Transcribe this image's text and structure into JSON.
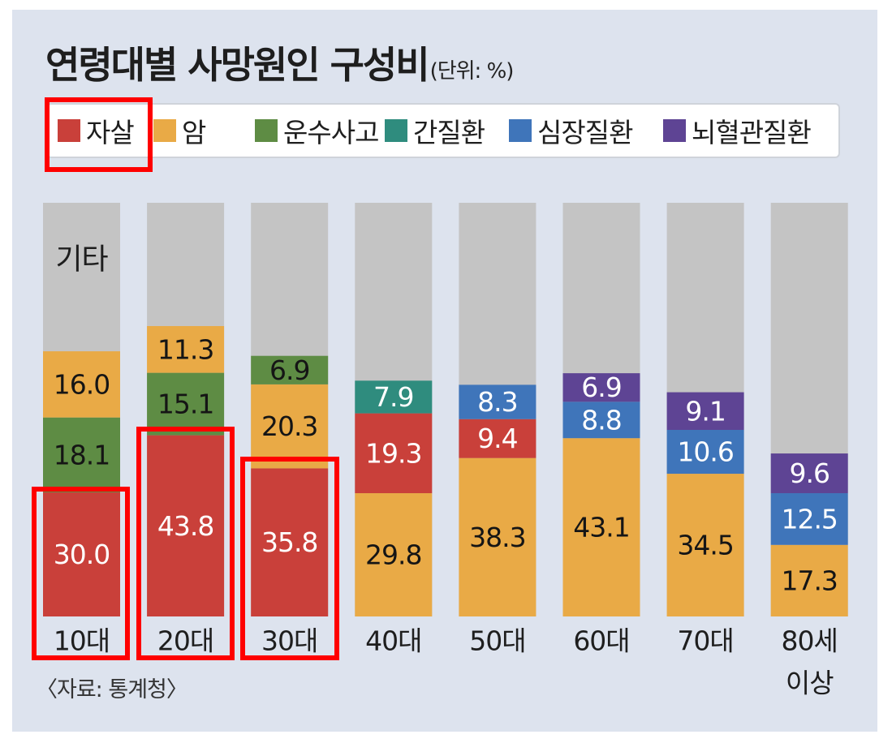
{
  "chart_data": {
    "type": "bar",
    "stacked": true,
    "title": "연령대별 사망원인 구성비",
    "unit_label": "(단위: %)",
    "source": "〈자료: 통계청〉",
    "categories": [
      "10대",
      "20대",
      "30대",
      "40대",
      "50대",
      "60대",
      "70대",
      "80세\n이상"
    ],
    "series": [
      {
        "name": "자살",
        "color": "#c9403a",
        "values": [
          30.0,
          43.8,
          35.8,
          19.3,
          9.4,
          null,
          null,
          null
        ]
      },
      {
        "name": "암",
        "color": "#e9aa46",
        "values": [
          16.0,
          11.3,
          20.3,
          29.8,
          38.3,
          43.1,
          34.5,
          17.3
        ]
      },
      {
        "name": "운수사고",
        "color": "#5e8c44",
        "values": [
          18.1,
          15.1,
          6.9,
          null,
          null,
          null,
          null,
          null
        ]
      },
      {
        "name": "간질환",
        "color": "#2f8c7e",
        "values": [
          null,
          null,
          null,
          7.9,
          null,
          null,
          null,
          null
        ]
      },
      {
        "name": "심장질환",
        "color": "#3f75ba",
        "values": [
          null,
          null,
          null,
          null,
          8.3,
          8.8,
          10.6,
          12.5
        ]
      },
      {
        "name": "뇌혈관질환",
        "color": "#5e4494",
        "values": [
          null,
          null,
          null,
          null,
          null,
          6.9,
          9.1,
          9.6
        ]
      }
    ],
    "stack_order": [
      [
        "자살",
        "운수사고",
        "암"
      ],
      [
        "자살",
        "운수사고",
        "암"
      ],
      [
        "자살",
        "암",
        "운수사고"
      ],
      [
        "암",
        "자살",
        "간질환"
      ],
      [
        "암",
        "자살",
        "심장질환"
      ],
      [
        "암",
        "심장질환",
        "뇌혈관질환"
      ],
      [
        "암",
        "심장질환",
        "뇌혈관질환"
      ],
      [
        "암",
        "심장질환",
        "뇌혈관질환"
      ]
    ],
    "other_label": "기타",
    "other_color": "#c4c4c4",
    "ylim": [
      0,
      100
    ],
    "highlight": {
      "legend_item": "자살",
      "categories": [
        "10대",
        "20대",
        "30대"
      ],
      "color": "#ff0000"
    }
  }
}
